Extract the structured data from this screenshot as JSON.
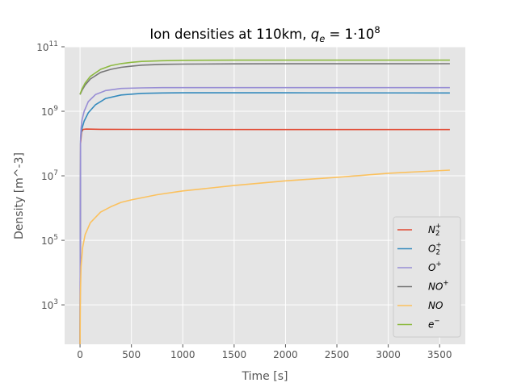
{
  "chart_data": {
    "type": "line",
    "title": "Ion densities at 110km, q_e = 1·10^8",
    "title_parts": {
      "lead": "Ion densities at 110km, ",
      "var": "q",
      "sub": "e",
      "rest": " = 1·10",
      "exp": "8"
    },
    "xlabel": "Time [s]",
    "ylabel": "Density [m^-3]",
    "xlim": [
      -150,
      3750
    ],
    "ylim": [
      60,
      100000000000
    ],
    "yscale": "log",
    "x_ticks": [
      0,
      500,
      1000,
      1500,
      2000,
      2500,
      3000,
      3500
    ],
    "y_ticks": [
      {
        "value": 1000,
        "base": "10",
        "exp": "3"
      },
      {
        "value": 100000,
        "base": "10",
        "exp": "5"
      },
      {
        "value": 10000000,
        "base": "10",
        "exp": "7"
      },
      {
        "value": 1000000000,
        "base": "10",
        "exp": "9"
      },
      {
        "value": 100000000000,
        "base": "10",
        "exp": "11"
      }
    ],
    "grid": true,
    "legend_position": "lower-right",
    "series": [
      {
        "name": "N2+",
        "label": {
          "base": "N",
          "sub": "2",
          "sup": "+"
        },
        "color": "#E24A33",
        "x": [
          0,
          5,
          15,
          30,
          60,
          200,
          500,
          1000,
          2000,
          3600
        ],
        "y": [
          60,
          100000000,
          230000000,
          275000000,
          280000000,
          276000000,
          274000000,
          273000000,
          272000000,
          272000000
        ]
      },
      {
        "name": "O2+",
        "label": {
          "base": "O",
          "sub": "2",
          "sup": "+"
        },
        "color": "#348ABD",
        "x": [
          0,
          5,
          10,
          20,
          40,
          80,
          150,
          250,
          400,
          600,
          800,
          1000,
          2000,
          3600
        ],
        "y": [
          60,
          120000000,
          200000000,
          300000000,
          500000000,
          900000000,
          1600000000,
          2500000000,
          3200000000,
          3600000000,
          3700000000,
          3750000000,
          3750000000,
          3700000000
        ]
      },
      {
        "name": "O+",
        "label": {
          "base": "O",
          "sub": "",
          "sup": "+"
        },
        "color": "#988ED5",
        "x": [
          0,
          5,
          10,
          20,
          40,
          80,
          150,
          250,
          400,
          600,
          800,
          1000,
          2000,
          3600
        ],
        "y": [
          60,
          150000000,
          300000000,
          550000000,
          1000000000,
          2000000000,
          3300000000,
          4400000000,
          5100000000,
          5300000000,
          5400000000,
          5400000000,
          5400000000,
          5400000000
        ]
      },
      {
        "name": "NO+",
        "label": {
          "base": "NO",
          "sub": "",
          "sup": "+"
        },
        "color": "#777777",
        "x": [
          0,
          20,
          50,
          100,
          200,
          300,
          400,
          500,
          600,
          800,
          1000,
          1500,
          2000,
          3600
        ],
        "y": [
          3300000000,
          4500000000,
          6500000000,
          10000000000,
          16000000000,
          20000000000,
          23000000000,
          25000000000,
          27000000000,
          28500000000,
          29000000000,
          29500000000,
          29700000000,
          29800000000
        ]
      },
      {
        "name": "NO",
        "label": {
          "base": "NO",
          "sub": "",
          "sup": ""
        },
        "color": "#FBC15E",
        "x": [
          0,
          3,
          10,
          25,
          50,
          100,
          200,
          300,
          400,
          500,
          750,
          1000,
          1500,
          2000,
          2500,
          3000,
          3600
        ],
        "y": [
          60,
          2000,
          15000,
          60000,
          150000,
          350000,
          750000,
          1100000,
          1500000,
          1800000,
          2600000,
          3400000,
          5000000,
          7000000,
          9000000,
          12000000,
          15000000
        ]
      },
      {
        "name": "e-",
        "label": {
          "base": "e",
          "sub": "",
          "sup": "−"
        },
        "color": "#8EBA42",
        "x": [
          0,
          20,
          50,
          100,
          200,
          300,
          400,
          500,
          600,
          800,
          1000,
          1500,
          2000,
          3600
        ],
        "y": [
          3400000000,
          5000000000,
          7500000000,
          12000000000,
          20000000000,
          26000000000,
          30000000000,
          33000000000,
          35000000000,
          37000000000,
          38000000000,
          38500000000,
          38500000000,
          38500000000
        ]
      }
    ]
  }
}
